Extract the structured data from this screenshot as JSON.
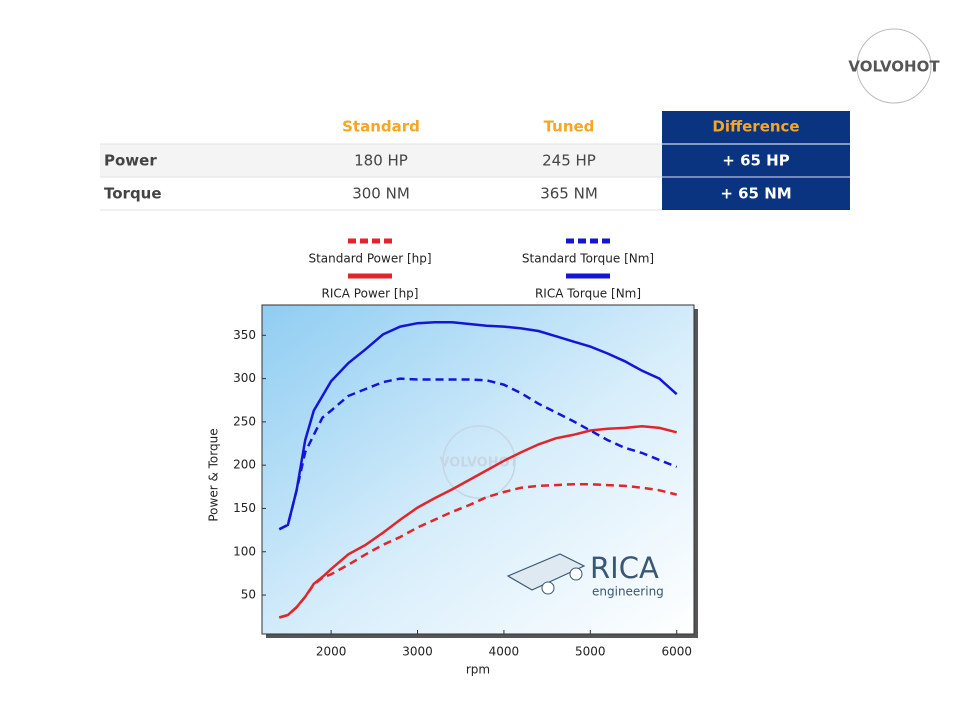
{
  "logo": "VOLVOHOT",
  "table": {
    "headers": [
      "Standard",
      "Tuned",
      "Difference"
    ],
    "rows": [
      [
        "Power",
        "180 HP",
        "245 HP",
        "+ 65 HP"
      ],
      [
        "Torque",
        "300 NM",
        "365 NM",
        "+ 65 NM"
      ]
    ]
  },
  "chart_data": {
    "type": "line",
    "x_label": "rpm",
    "y_label": "Power & Torque",
    "watermark": "VOLVOHOT",
    "brand": "RICA",
    "brand_sub": "engineering",
    "x": [
      1400,
      1500,
      1600,
      1700,
      1800,
      1900,
      2000,
      2200,
      2400,
      2600,
      2800,
      3000,
      3200,
      3400,
      3600,
      3800,
      4000,
      4200,
      4400,
      4600,
      4800,
      5000,
      5200,
      5400,
      5600,
      5800,
      6000
    ],
    "series": [
      {
        "name": "Standard Power [hp]",
        "color": "#e0262b",
        "dashed": true,
        "values": [
          24,
          27,
          36,
          48,
          62,
          70,
          74,
          85,
          97,
          108,
          117,
          128,
          137,
          146,
          154,
          163,
          169,
          174,
          176,
          177,
          178,
          178,
          177,
          176,
          174,
          171,
          166
        ]
      },
      {
        "name": "RICA Power [hp]",
        "color": "#e0262b",
        "dashed": false,
        "values": [
          24,
          27,
          36,
          48,
          63,
          71,
          80,
          97,
          108,
          122,
          137,
          151,
          162,
          172,
          183,
          194,
          205,
          215,
          224,
          231,
          235,
          240,
          242,
          243,
          245,
          243,
          238
        ]
      },
      {
        "name": "Standard Torque [Nm]",
        "color": "#1515d6",
        "dashed": true,
        "values": [
          126,
          131,
          171,
          215,
          235,
          255,
          263,
          280,
          288,
          296,
          300,
          299,
          299,
          299,
          299,
          298,
          293,
          283,
          271,
          261,
          251,
          240,
          229,
          220,
          214,
          206,
          198
        ]
      },
      {
        "name": "RICA Torque [Nm]",
        "color": "#1515d6",
        "dashed": false,
        "values": [
          126,
          131,
          171,
          229,
          263,
          280,
          297,
          318,
          334,
          351,
          360,
          364,
          365,
          365,
          363,
          361,
          360,
          358,
          355,
          349,
          343,
          337,
          329,
          320,
          309,
          300,
          282
        ]
      }
    ],
    "xlim": [
      1200,
      6200
    ],
    "ylim": [
      5,
      385
    ],
    "xticks": [
      2000,
      3000,
      4000,
      5000,
      6000
    ],
    "yticks": [
      50,
      100,
      150,
      200,
      250,
      300,
      350
    ],
    "grid": false
  }
}
